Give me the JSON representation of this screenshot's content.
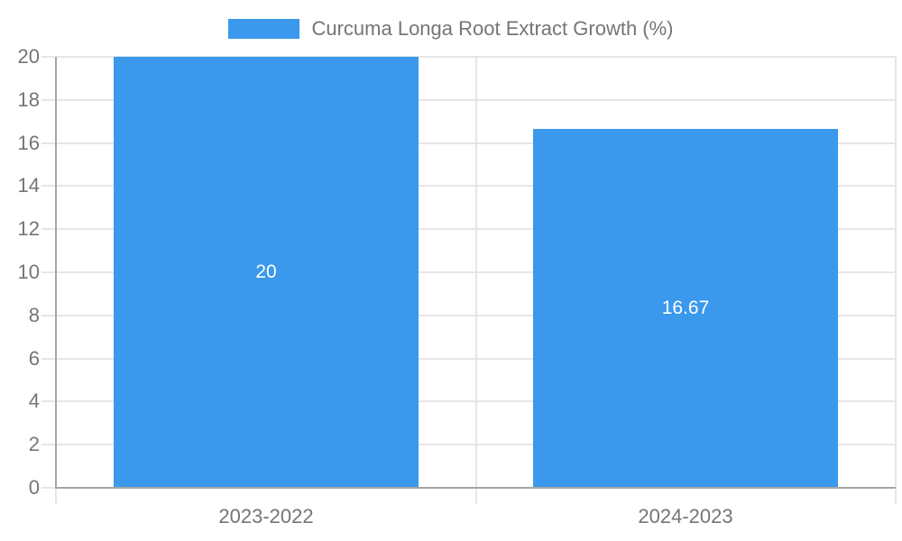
{
  "chart_data": {
    "type": "bar",
    "title": "Curcuma Longa Root Extract Growth (%)",
    "categories": [
      "2023-2022",
      "2024-2023"
    ],
    "series": [
      {
        "name": "Curcuma Longa Root Extract Growth (%)",
        "values": [
          20,
          16.67
        ]
      }
    ],
    "value_labels": [
      "20",
      "16.67"
    ],
    "xlabel": "",
    "ylabel": "",
    "ylim": [
      0,
      20
    ],
    "ytick_step": 2,
    "ytick_labels": [
      "0",
      "2",
      "4",
      "6",
      "8",
      "10",
      "12",
      "14",
      "16",
      "18",
      "20"
    ],
    "grid": true,
    "legend_position": "top-center",
    "colors": {
      "bar": "#3a99ec",
      "grid": "#e6e6e6",
      "axis": "#a6a6a6",
      "tick_text": "#757575",
      "value_label": "#ffffff",
      "background": "#ffffff"
    }
  }
}
